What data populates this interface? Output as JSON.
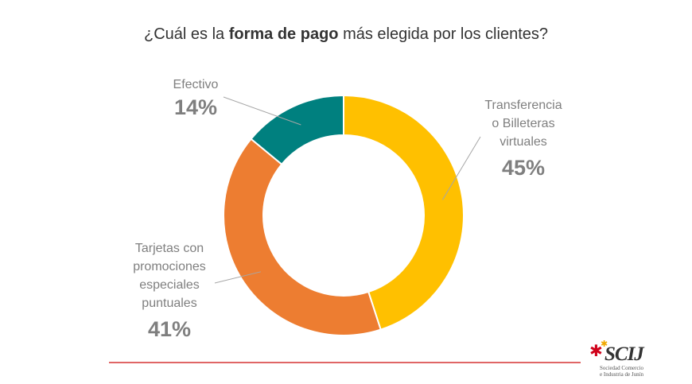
{
  "title": {
    "pre": "¿Cuál es la ",
    "bold": "forma de pago",
    "post": " más elegida por los clientes?"
  },
  "chart_data": {
    "type": "pie",
    "variant": "donut",
    "slices": [
      {
        "label": "Transferencia\no Billeteras\nvirtuales",
        "value": 45,
        "display": "45%",
        "color": "#ffc000"
      },
      {
        "label": "Tarjetas con\npromociones\nespeciales\npuntuales",
        "value": 41,
        "display": "41%",
        "color": "#ed7d31"
      },
      {
        "label": "Efectivo",
        "value": 14,
        "display": "14%",
        "color": "#00807f"
      }
    ],
    "legend": "none",
    "data_labels": "outside-with-leader-lines"
  },
  "rule_color": "#e06666",
  "logo": {
    "brand": "SCIJ",
    "subtitle": "Sociedad Comercio\ne Industria de Junín"
  }
}
